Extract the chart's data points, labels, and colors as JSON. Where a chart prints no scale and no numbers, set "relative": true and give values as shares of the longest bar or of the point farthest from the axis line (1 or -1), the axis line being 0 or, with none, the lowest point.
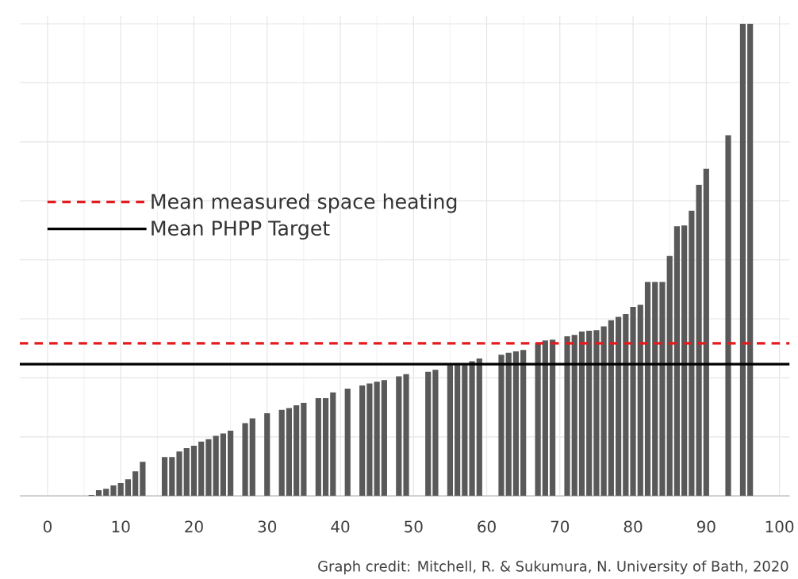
{
  "chart_data": {
    "type": "bar",
    "relative": true,
    "x": [
      6,
      7,
      8,
      9,
      10,
      11,
      12,
      13,
      16,
      17,
      18,
      19,
      20,
      21,
      22,
      23,
      24,
      25,
      27,
      28,
      30,
      32,
      33,
      34,
      35,
      37,
      38,
      39,
      41,
      43,
      44,
      45,
      46,
      48,
      49,
      52,
      53,
      55,
      56,
      57,
      58,
      59,
      62,
      63,
      64,
      65,
      67,
      68,
      69,
      71,
      72,
      73,
      74,
      75,
      76,
      77,
      78,
      79,
      80,
      81,
      82,
      83,
      84,
      85,
      86,
      87,
      88,
      89,
      90,
      93,
      95,
      96
    ],
    "values": [
      0.002,
      0.012,
      0.015,
      0.022,
      0.027,
      0.035,
      0.052,
      0.072,
      0.082,
      0.082,
      0.094,
      0.101,
      0.106,
      0.115,
      0.12,
      0.127,
      0.132,
      0.138,
      0.154,
      0.164,
      0.175,
      0.182,
      0.186,
      0.192,
      0.197,
      0.207,
      0.207,
      0.219,
      0.227,
      0.234,
      0.238,
      0.242,
      0.245,
      0.253,
      0.258,
      0.263,
      0.267,
      0.277,
      0.277,
      0.277,
      0.285,
      0.291,
      0.299,
      0.303,
      0.306,
      0.309,
      0.324,
      0.329,
      0.331,
      0.338,
      0.341,
      0.348,
      0.35,
      0.351,
      0.359,
      0.372,
      0.379,
      0.385,
      0.4,
      0.405,
      0.453,
      0.453,
      0.453,
      0.508,
      0.571,
      0.573,
      0.604,
      0.659,
      0.693,
      0.764,
      1.0,
      1.0
    ],
    "color": "#595959",
    "xlim": [
      -3.8,
      101.4
    ],
    "xticks": [
      0,
      10,
      20,
      30,
      40,
      50,
      60,
      70,
      80,
      90,
      100
    ],
    "grid": true,
    "legend": "left",
    "ref_lines": [
      {
        "axis": "y",
        "value": 0.323,
        "label": "Mean measured space heating",
        "color": "#e41a1c",
        "line_style": "dashed"
      },
      {
        "axis": "y",
        "value": 0.279,
        "label": "Mean PHPP Target",
        "color": "#000000",
        "line_style": "solid"
      }
    ],
    "annotations": [
      "Graph credit: Mitchell, R. & Sukumura, N. University of Bath, 2020"
    ]
  }
}
